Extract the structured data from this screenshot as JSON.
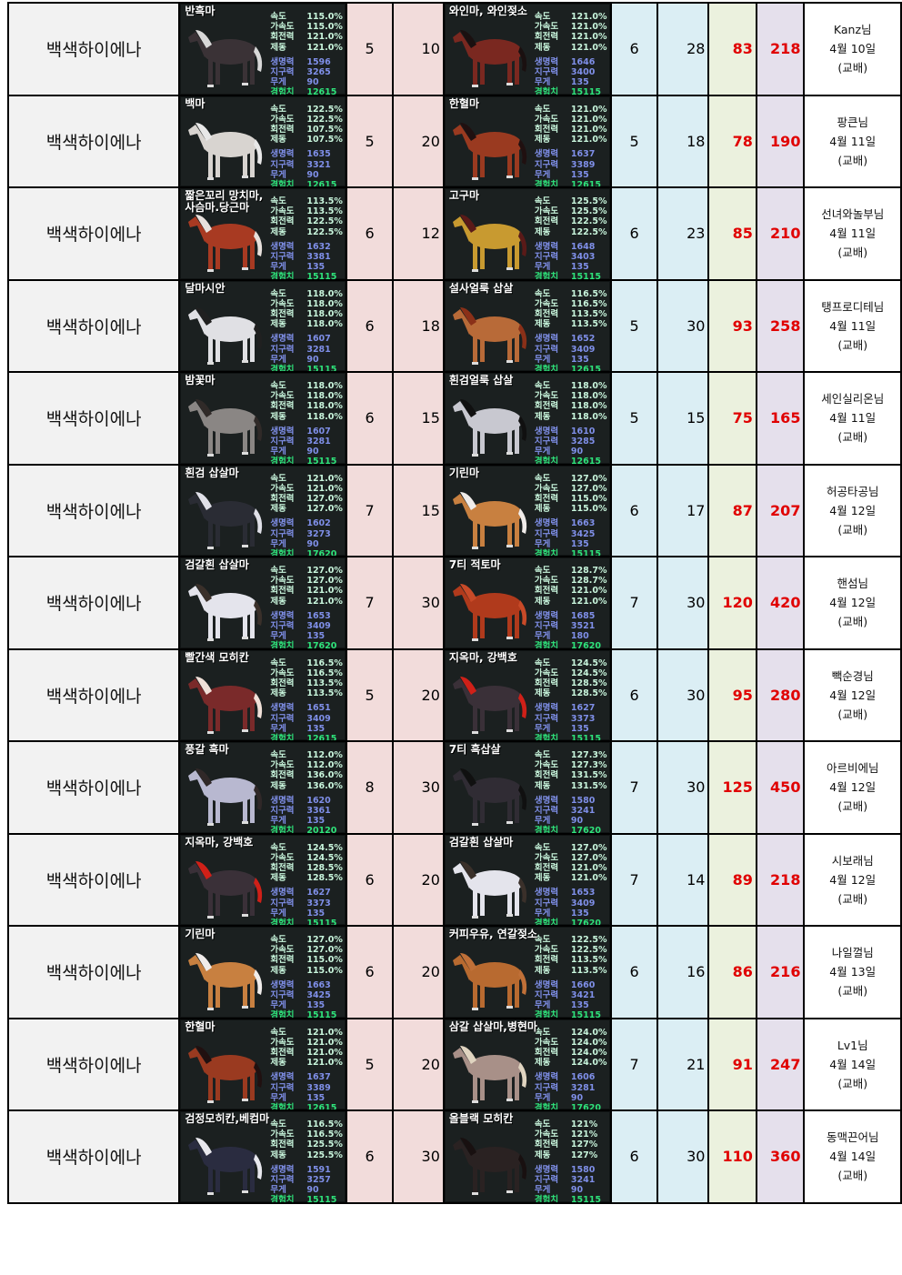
{
  "stat_labels": {
    "speed": "속도",
    "accel": "가속도",
    "turn": "회전력",
    "brake": "제동",
    "hp": "생명력",
    "stamina": "지구력",
    "weight": "무게",
    "exp": "경험치"
  },
  "colors": {
    "pink_col": "#f2dcdb",
    "blue_col": "#dbeef4",
    "green_col": "#ebf1de",
    "lavender_col": "#e5e0ec",
    "highlight_text": "#e00000"
  },
  "rows": [
    {
      "name": "백색하이에나",
      "h1": {
        "title": "반흑마",
        "coat": "#3a3236",
        "mane": "#d8d8d8",
        "s": [
          "115.0%",
          "115.0%",
          "121.0%",
          "121.0%",
          "1596",
          "3265",
          "90",
          "12615"
        ]
      },
      "n1": "5",
      "n2": "10",
      "h2": {
        "title": "와인마, 와인젖소",
        "coat": "#7a2820",
        "mane": "#1a1010",
        "s": [
          "121.0%",
          "121.0%",
          "121.0%",
          "121.0%",
          "1646",
          "3400",
          "135",
          "15115"
        ]
      },
      "n3": "6",
      "n4": "28",
      "n5": "83",
      "n6": "218",
      "owner": "Kanz님",
      "date": "4월 10일",
      "note": "(교배)"
    },
    {
      "name": "백색하이에나",
      "h1": {
        "title": "백마",
        "coat": "#d8d4d0",
        "mane": "#e8e8e8",
        "s": [
          "122.5%",
          "122.5%",
          "107.5%",
          "107.5%",
          "1635",
          "3321",
          "90",
          "12615"
        ]
      },
      "n1": "5",
      "n2": "20",
      "h2": {
        "title": "한혈마",
        "coat": "#9a3a20",
        "mane": "#201010",
        "s": [
          "121.0%",
          "121.0%",
          "121.0%",
          "121.0%",
          "1637",
          "3389",
          "135",
          "12615"
        ]
      },
      "n3": "5",
      "n4": "18",
      "n5": "78",
      "n6": "190",
      "owner": "팡큰님",
      "date": "4월 11일",
      "note": "(교배)"
    },
    {
      "name": "백색하이에나",
      "h1": {
        "title": "짧은꼬리 망치마,\n사슴마.당근마",
        "coat": "#a83a22",
        "mane": "#e8e0dc",
        "s": [
          "113.5%",
          "113.5%",
          "122.5%",
          "122.5%",
          "1632",
          "3381",
          "135",
          "15115"
        ]
      },
      "n1": "6",
      "n2": "12",
      "h2": {
        "title": "고구마",
        "coat": "#c89a30",
        "mane": "#5a1a18",
        "s": [
          "125.5%",
          "125.5%",
          "122.5%",
          "122.5%",
          "1648",
          "3403",
          "135",
          "15115"
        ]
      },
      "n3": "6",
      "n4": "23",
      "n5": "85",
      "n6": "210",
      "owner": "선녀와놀부님",
      "date": "4월 11일",
      "note": "(교배)"
    },
    {
      "name": "백색하이에나",
      "h1": {
        "title": "달마시안",
        "coat": "#e0e0e4",
        "mane": "#202020",
        "s": [
          "118.0%",
          "118.0%",
          "118.0%",
          "118.0%",
          "1607",
          "3281",
          "90",
          "15115"
        ]
      },
      "n1": "6",
      "n2": "18",
      "h2": {
        "title": "설사얼룩 삽살",
        "coat": "#b86a38",
        "mane": "#8a3018",
        "s": [
          "116.5%",
          "116.5%",
          "113.5%",
          "113.5%",
          "1652",
          "3409",
          "135",
          "12615"
        ]
      },
      "n3": "5",
      "n4": "30",
      "n5": "93",
      "n6": "258",
      "owner": "탱프로디테님",
      "date": "4월 11일",
      "note": "(교배)"
    },
    {
      "name": "백색하이에나",
      "h1": {
        "title": "밤꽃마",
        "coat": "#8a8684",
        "mane": "#302a28",
        "s": [
          "118.0%",
          "118.0%",
          "118.0%",
          "118.0%",
          "1607",
          "3281",
          "90",
          "15115"
        ]
      },
      "n1": "6",
      "n2": "15",
      "h2": {
        "title": "흰검얼룩 삽살",
        "coat": "#c8c8d0",
        "mane": "#101010",
        "s": [
          "118.0%",
          "118.0%",
          "118.0%",
          "118.0%",
          "1610",
          "3285",
          "90",
          "12615"
        ]
      },
      "n3": "5",
      "n4": "15",
      "n5": "75",
      "n6": "165",
      "owner": "세인실리온님",
      "date": "4월 11일",
      "note": "(교배)"
    },
    {
      "name": "백색하이에나",
      "h1": {
        "title": "흰검 삽살마",
        "coat": "#2a2c34",
        "mane": "#e0e0e8",
        "s": [
          "121.0%",
          "121.0%",
          "127.0%",
          "127.0%",
          "1602",
          "3273",
          "90",
          "17620"
        ]
      },
      "n1": "7",
      "n2": "15",
      "h2": {
        "title": "기린마",
        "coat": "#c88040",
        "mane": "#f0ecea",
        "s": [
          "127.0%",
          "127.0%",
          "115.0%",
          "115.0%",
          "1663",
          "3425",
          "135",
          "15115"
        ]
      },
      "n3": "6",
      "n4": "17",
      "n5": "87",
      "n6": "207",
      "owner": "허공타공님",
      "date": "4월 12일",
      "note": "(교배)"
    },
    {
      "name": "백색하이에나",
      "h1": {
        "title": "검갈흰 삽살마",
        "coat": "#e4e4ec",
        "mane": "#3a302a",
        "s": [
          "127.0%",
          "127.0%",
          "121.0%",
          "121.0%",
          "1653",
          "3409",
          "135",
          "17620"
        ]
      },
      "n1": "7",
      "n2": "30",
      "h2": {
        "title": "7티 적토마",
        "coat": "#b03a1c",
        "mane": "#c84a28",
        "s": [
          "128.7%",
          "128.7%",
          "121.0%",
          "121.0%",
          "1685",
          "3521",
          "180",
          "17620"
        ]
      },
      "n3": "7",
      "n4": "30",
      "n5": "120",
      "n6": "420",
      "owner": "핸섬님",
      "date": "4월 12일",
      "note": "(교배)"
    },
    {
      "name": "백색하이에나",
      "h1": {
        "title": "빨간색 모히칸",
        "coat": "#7a2a2a",
        "mane": "#f0e0d8",
        "s": [
          "116.5%",
          "116.5%",
          "113.5%",
          "113.5%",
          "1651",
          "3409",
          "135",
          "12615"
        ]
      },
      "n1": "5",
      "n2": "20",
      "h2": {
        "title": "지옥마, 강백호",
        "coat": "#3a3038",
        "mane": "#d02018",
        "s": [
          "124.5%",
          "124.5%",
          "128.5%",
          "128.5%",
          "1627",
          "3373",
          "135",
          "15115"
        ]
      },
      "n3": "6",
      "n4": "30",
      "n5": "95",
      "n6": "280",
      "owner": "빽순경님",
      "date": "4월 12일",
      "note": "(교배)"
    },
    {
      "name": "백색하이에나",
      "h1": {
        "title": "풍갈 흑마",
        "coat": "#b8b8d0",
        "mane": "#302828",
        "s": [
          "112.0%",
          "112.0%",
          "136.0%",
          "136.0%",
          "1620",
          "3361",
          "135",
          "20120"
        ]
      },
      "n1": "8",
      "n2": "30",
      "h2": {
        "title": "7티 흑삽살",
        "coat": "#302c34",
        "mane": "#101010",
        "s": [
          "127.3%",
          "127.3%",
          "131.5%",
          "131.5%",
          "1580",
          "3241",
          "90",
          "17620"
        ]
      },
      "n3": "7",
      "n4": "30",
      "n5": "125",
      "n6": "450",
      "owner": "아르비에님",
      "date": "4월 12일",
      "note": "(교배)"
    },
    {
      "name": "백색하이에나",
      "h1": {
        "title": "지옥마, 강백호",
        "coat": "#3a3038",
        "mane": "#d02018",
        "s": [
          "124.5%",
          "124.5%",
          "128.5%",
          "128.5%",
          "1627",
          "3373",
          "135",
          "15115"
        ]
      },
      "n1": "6",
      "n2": "20",
      "h2": {
        "title": "검갈흰 삽살마",
        "coat": "#e4e4ec",
        "mane": "#3a302a",
        "s": [
          "127.0%",
          "127.0%",
          "121.0%",
          "121.0%",
          "1653",
          "3409",
          "135",
          "17620"
        ]
      },
      "n3": "7",
      "n4": "14",
      "n5": "89",
      "n6": "218",
      "owner": "시보래님",
      "date": "4월 12일",
      "note": "(교배)"
    },
    {
      "name": "백색하이에나",
      "h1": {
        "title": "기린마",
        "coat": "#c88040",
        "mane": "#f0ecea",
        "s": [
          "127.0%",
          "127.0%",
          "115.0%",
          "115.0%",
          "1663",
          "3425",
          "135",
          "15115"
        ]
      },
      "n1": "6",
      "n2": "20",
      "h2": {
        "title": "커피우유, 연갈젖소",
        "coat": "#b86a30",
        "mane": "#c07038",
        "s": [
          "122.5%",
          "122.5%",
          "113.5%",
          "113.5%",
          "1660",
          "3421",
          "135",
          "15115"
        ]
      },
      "n3": "6",
      "n4": "16",
      "n5": "86",
      "n6": "216",
      "owner": "나일껄님",
      "date": "4월 13일",
      "note": "(교배)"
    },
    {
      "name": "백색하이에나",
      "h1": {
        "title": "한혈마",
        "coat": "#9a3a20",
        "mane": "#201010",
        "s": [
          "121.0%",
          "121.0%",
          "121.0%",
          "121.0%",
          "1637",
          "3389",
          "135",
          "12615"
        ]
      },
      "n1": "5",
      "n2": "20",
      "h2": {
        "title": "삼갈 삽살마,병현마",
        "coat": "#a89088",
        "mane": "#e0d4c0",
        "s": [
          "124.0%",
          "124.0%",
          "124.0%",
          "124.0%",
          "1606",
          "3281",
          "90",
          "17620"
        ]
      },
      "n3": "7",
      "n4": "21",
      "n5": "91",
      "n6": "247",
      "owner": "Lv1님",
      "date": "4월 14일",
      "note": "(교배)"
    },
    {
      "name": "백색하이에나",
      "h1": {
        "title": "검정모히칸,베컴마",
        "coat": "#2a2c40",
        "mane": "#e8e8ee",
        "s": [
          "116.5%",
          "116.5%",
          "125.5%",
          "125.5%",
          "1591",
          "3257",
          "90",
          "15115"
        ]
      },
      "n1": "6",
      "n2": "30",
      "h2": {
        "title": "올블랙 모히칸",
        "coat": "#2a2222",
        "mane": "#181010",
        "s": [
          "121%",
          "121%",
          "127%",
          "127%",
          "1580",
          "3241",
          "90",
          "15115"
        ]
      },
      "n3": "6",
      "n4": "30",
      "n5": "110",
      "n6": "360",
      "owner": "동맥끈어님",
      "date": "4월 14일",
      "note": "(교배)"
    }
  ]
}
